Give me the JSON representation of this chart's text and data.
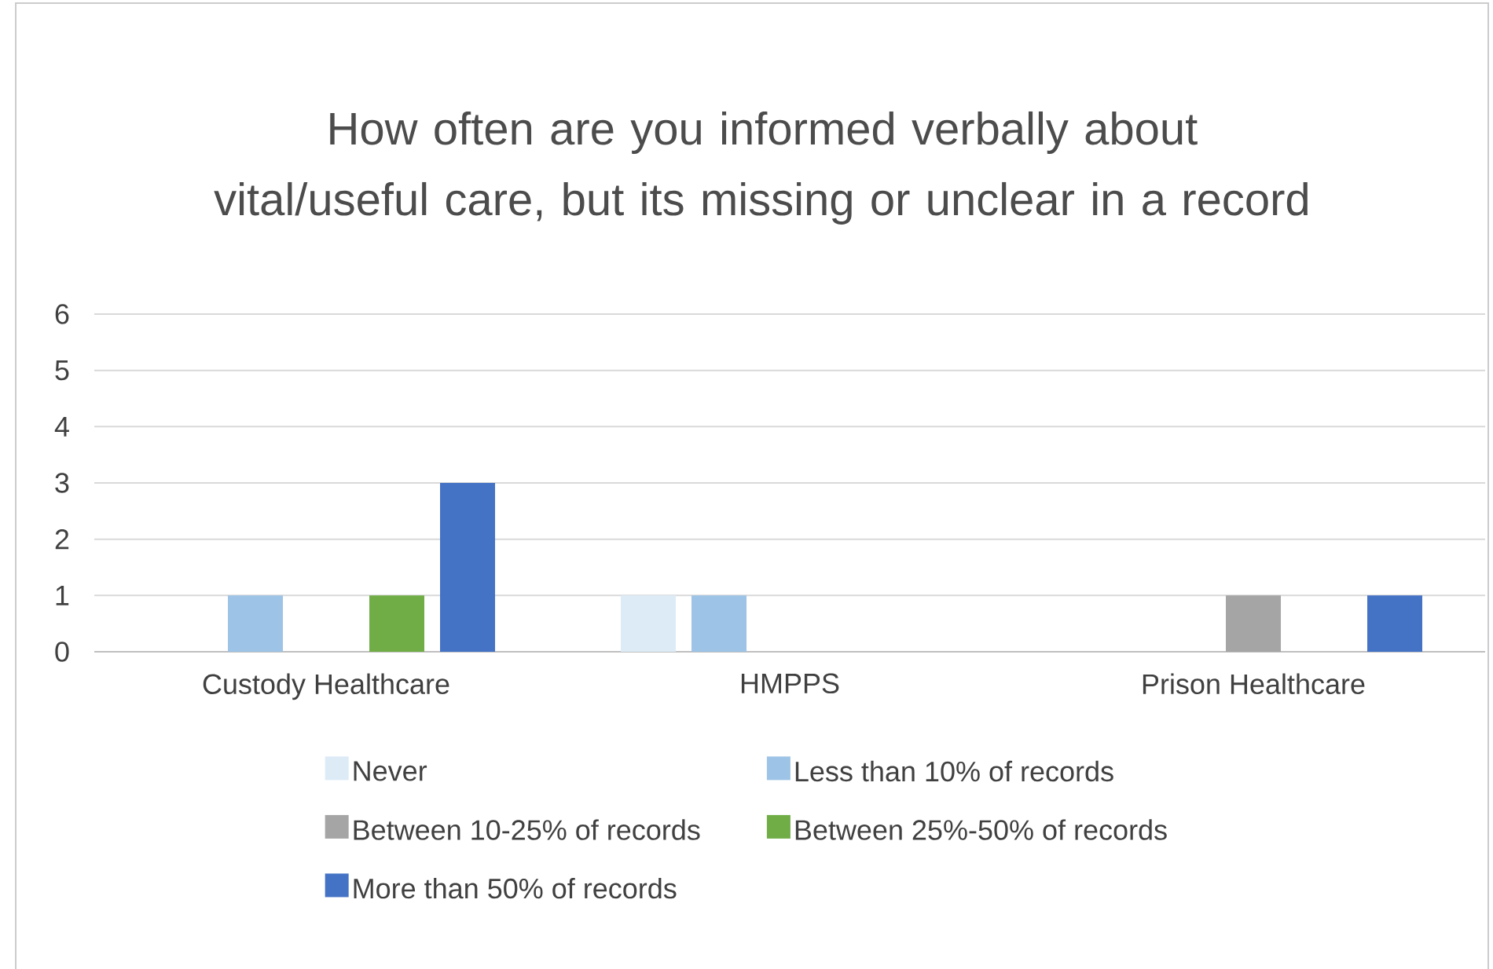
{
  "chart_data": {
    "type": "bar",
    "title": "How often are you informed verbally about vital/useful care, but its missing or unclear in a record",
    "categories": [
      "Custody Healthcare",
      "HMPPS",
      "Prison Healthcare"
    ],
    "series": [
      {
        "name": "Never",
        "color": "#ddebf7",
        "values": [
          0,
          1,
          0
        ]
      },
      {
        "name": "Less than 10% of records",
        "color": "#9dc3e6",
        "values": [
          1,
          1,
          0
        ]
      },
      {
        "name": "Between 10-25% of records",
        "color": "#a5a5a5",
        "values": [
          0,
          0,
          1
        ]
      },
      {
        "name": "Between 25%-50% of records",
        "color": "#70ad47",
        "values": [
          1,
          0,
          0
        ]
      },
      {
        "name": "More than 50% of records",
        "color": "#4472c4",
        "values": [
          3,
          0,
          1
        ]
      }
    ],
    "ylim": [
      0,
      6
    ],
    "yticks": [
      0,
      1,
      2,
      3,
      4,
      5,
      6
    ],
    "grid": "y",
    "legend": "bottom"
  }
}
